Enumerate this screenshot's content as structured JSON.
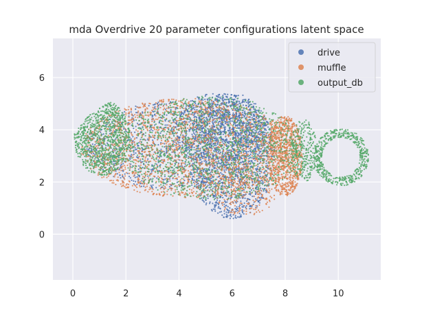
{
  "chart_data": {
    "type": "scatter",
    "title": "mda Overdrive 20 parameter configurations latent space",
    "xlabel": "",
    "ylabel": "",
    "xlim": [
      -0.75,
      11.6
    ],
    "ylim": [
      -1.75,
      7.5
    ],
    "x_ticks": [
      0,
      2,
      4,
      6,
      8,
      10
    ],
    "y_ticks": [
      0,
      2,
      4,
      6
    ],
    "grid": true,
    "background": "#EAEAF2",
    "legend_position": "top-right",
    "series": [
      {
        "name": "drive",
        "color": "#4C72B0",
        "regions": [
          {
            "cx": 3.8,
            "cy": 3.4,
            "rx": 3.3,
            "ry": 1.7,
            "weight": 3
          },
          {
            "cx": 6.0,
            "cy": 3.0,
            "rx": 1.6,
            "ry": 2.4,
            "weight": 4
          },
          {
            "cx": 5.5,
            "cy": 4.0,
            "rx": 1.8,
            "ry": 1.4,
            "weight": 2
          }
        ]
      },
      {
        "name": "muffle",
        "color": "#DD8452",
        "regions": [
          {
            "cx": 4.3,
            "cy": 3.3,
            "rx": 4.0,
            "ry": 1.9,
            "weight": 7
          },
          {
            "cx": 8.0,
            "cy": 3.0,
            "rx": 0.65,
            "ry": 1.55,
            "weight": 3
          },
          {
            "cx": 6.5,
            "cy": 1.7,
            "rx": 1.2,
            "ry": 1.0,
            "weight": 1
          }
        ]
      },
      {
        "name": "output_db",
        "color": "#55A868",
        "regions": [
          {
            "cx": 1.1,
            "cy": 3.7,
            "rx": 1.05,
            "ry": 1.45,
            "weight": 4
          },
          {
            "cx": 5.2,
            "cy": 3.3,
            "rx": 3.4,
            "ry": 2.0,
            "weight": 5
          },
          {
            "cx": 10.1,
            "cy": 2.95,
            "rx": 1.0,
            "ry": 1.05,
            "weight": 2,
            "ring": true
          },
          {
            "cx": 8.7,
            "cy": 3.2,
            "rx": 0.5,
            "ry": 1.2,
            "weight": 1
          }
        ]
      }
    ]
  }
}
